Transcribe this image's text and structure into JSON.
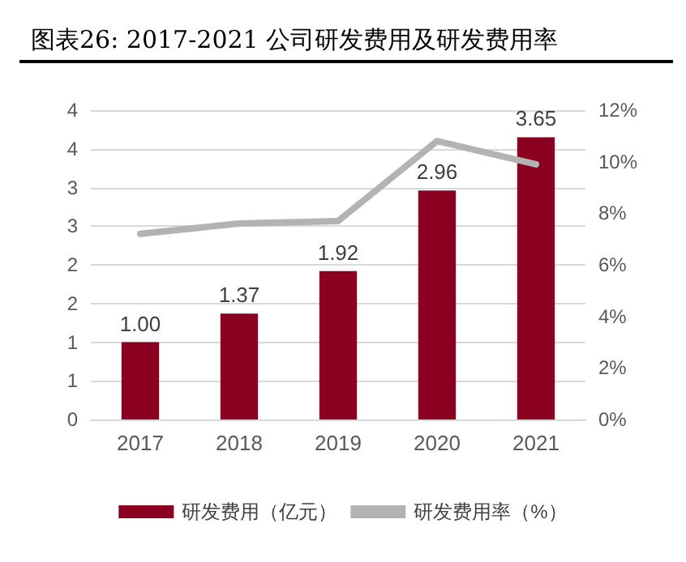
{
  "chart_data": {
    "type": "bar",
    "title": "图表26: 2017-2021 公司研发费用及研发费用率",
    "categories": [
      "2017",
      "2018",
      "2019",
      "2020",
      "2021"
    ],
    "series": [
      {
        "name": "研发费用（亿元）",
        "color": "#8b0020",
        "values": [
          1.0,
          1.37,
          1.92,
          2.96,
          3.65
        ],
        "value_labels": [
          "1.00",
          "1.37",
          "1.92",
          "2.96",
          "3.65"
        ]
      },
      {
        "name": "研发费用率（%）",
        "type": "line",
        "axis": "y2",
        "color": "#b3b3b3",
        "values": [
          7.2,
          7.6,
          7.7,
          10.8,
          9.9
        ]
      }
    ],
    "ylim": [
      0,
      4
    ],
    "yticks": [
      0,
      {
        "value": 0.5,
        "label": "1"
      },
      1,
      {
        "value": 1.5,
        "label": "2"
      },
      2,
      {
        "value": 2.5,
        "label": "3"
      },
      3,
      {
        "value": 3.5,
        "label": "4"
      },
      4
    ],
    "y2lim": [
      0,
      12
    ],
    "y2ticks": [
      {
        "value": 0,
        "label": "0%"
      },
      {
        "value": 2,
        "label": "2%"
      },
      {
        "value": 4,
        "label": "4%"
      },
      {
        "value": 6,
        "label": "6%"
      },
      {
        "value": 8,
        "label": "8%"
      },
      {
        "value": 10,
        "label": "10%"
      },
      {
        "value": 12,
        "label": "12%"
      }
    ],
    "grid": "y",
    "legend": "bottom",
    "marker": "none",
    "line_style": "solid"
  }
}
